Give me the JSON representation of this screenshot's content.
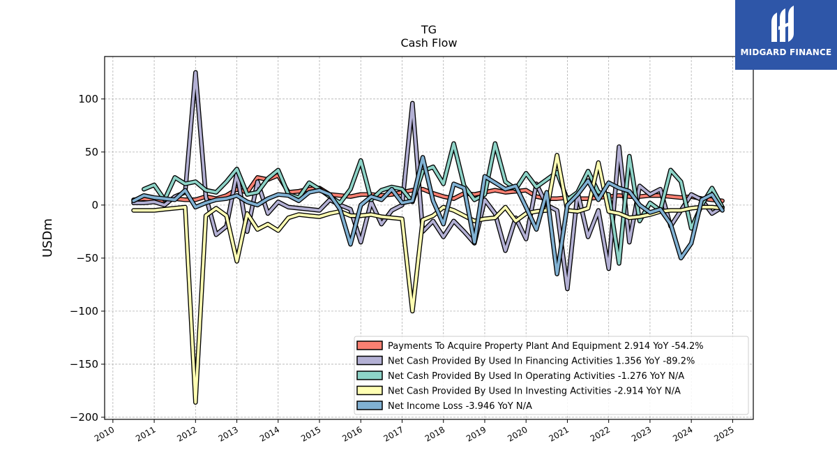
{
  "brand": {
    "name": "MIDGARD FINANCE"
  },
  "chart_data": {
    "type": "line",
    "title": "TG",
    "subtitle": "Cash Flow",
    "xlabel": "",
    "ylabel": "USDm",
    "xlim": [
      2009.8,
      2025.5
    ],
    "ylim": [
      -202,
      140
    ],
    "yticks": [
      100,
      50,
      0,
      -50,
      -100,
      -150,
      -200
    ],
    "ytick_labels": [
      "100",
      "50",
      "0",
      "−50",
      "−100",
      "−150",
      "−200"
    ],
    "xticks": [
      2010,
      2011,
      2012,
      2013,
      2014,
      2015,
      2016,
      2017,
      2018,
      2019,
      2020,
      2021,
      2022,
      2023,
      2024,
      2025
    ],
    "xtick_labels": [
      "2010",
      "2011",
      "2012",
      "2013",
      "2014",
      "2015",
      "2016",
      "2017",
      "2018",
      "2019",
      "2020",
      "2021",
      "2022",
      "2023",
      "2024",
      "2025"
    ],
    "grid": true,
    "legend_position": "bottom-right",
    "series": [
      {
        "name": "Payments To Acquire Property Plant And Equipment  2.914 YoY -54.2%",
        "color": "#fa8072",
        "x": [
          2010.5,
          2010.75,
          2011.0,
          2011.25,
          2011.5,
          2011.75,
          2012.0,
          2012.25,
          2012.5,
          2012.75,
          2013.0,
          2013.25,
          2013.5,
          2013.75,
          2014.0,
          2014.25,
          2014.5,
          2014.75,
          2015.0,
          2015.25,
          2015.5,
          2015.75,
          2016.0,
          2016.25,
          2016.5,
          2016.75,
          2017.0,
          2017.25,
          2017.5,
          2017.75,
          2018.0,
          2018.25,
          2018.5,
          2018.75,
          2019.0,
          2019.25,
          2019.5,
          2019.75,
          2020.0,
          2020.25,
          2020.5,
          2020.75,
          2021.0,
          2021.25,
          2021.5,
          2021.75,
          2022.0,
          2022.25,
          2022.5,
          2022.75,
          2023.0,
          2023.25,
          2023.5,
          2023.75,
          2024.0,
          2024.25,
          2024.5,
          2024.75
        ],
        "values": [
          5,
          6,
          5,
          4,
          6,
          5,
          5,
          8,
          6,
          9,
          15,
          12,
          26,
          24,
          28,
          12,
          13,
          15,
          16,
          10,
          9,
          8,
          10,
          10,
          9,
          10,
          12,
          14,
          15,
          11,
          8,
          6,
          11,
          10,
          12,
          14,
          12,
          13,
          14,
          8,
          6,
          6,
          7,
          6,
          6,
          7,
          8,
          9,
          8,
          8,
          9,
          9,
          8,
          7,
          8,
          6,
          5,
          4
        ]
      },
      {
        "name": "Net Cash Provided By Used In Financing Activities  1.356 YoY -89.2%",
        "color": "#b3b0d4",
        "x": [
          2010.5,
          2010.75,
          2011.0,
          2011.25,
          2011.5,
          2011.75,
          2012.0,
          2012.25,
          2012.5,
          2012.75,
          2013.0,
          2013.25,
          2013.5,
          2013.75,
          2014.0,
          2014.25,
          2014.5,
          2014.75,
          2015.0,
          2015.25,
          2015.5,
          2015.75,
          2016.0,
          2016.25,
          2016.5,
          2016.75,
          2017.0,
          2017.25,
          2017.5,
          2017.75,
          2018.0,
          2018.25,
          2018.5,
          2018.75,
          2019.0,
          2019.25,
          2019.5,
          2019.75,
          2020.0,
          2020.25,
          2020.5,
          2020.75,
          2021.0,
          2021.25,
          2021.5,
          2021.75,
          2022.0,
          2022.25,
          2022.5,
          2022.75,
          2023.0,
          2023.25,
          2023.5,
          2023.75,
          2024.0,
          2024.25,
          2024.5,
          2024.75
        ],
        "values": [
          2,
          2,
          3,
          0,
          8,
          12,
          125,
          8,
          -28,
          -20,
          30,
          -25,
          22,
          -8,
          3,
          -2,
          -3,
          -4,
          -5,
          5,
          0,
          -4,
          -35,
          3,
          -18,
          -5,
          0,
          96,
          -25,
          -15,
          -30,
          -15,
          -25,
          -36,
          5,
          -8,
          -43,
          -12,
          -32,
          20,
          0,
          -5,
          -79,
          12,
          -30,
          -5,
          -60,
          55,
          -35,
          18,
          10,
          15,
          -20,
          -5,
          10,
          5,
          -8,
          -2
        ]
      },
      {
        "name": "Net Cash Provided By Used In Operating Activities  -1.276 YoY N/A",
        "color": "#8dd3c7",
        "x": [
          2010.75,
          2011.0,
          2011.25,
          2011.5,
          2011.75,
          2012.0,
          2012.25,
          2012.5,
          2012.75,
          2013.0,
          2013.25,
          2013.5,
          2013.75,
          2014.0,
          2014.25,
          2014.5,
          2014.75,
          2015.0,
          2015.25,
          2015.5,
          2015.75,
          2016.0,
          2016.25,
          2016.5,
          2016.75,
          2017.0,
          2017.25,
          2017.5,
          2017.75,
          2018.0,
          2018.25,
          2018.5,
          2018.75,
          2019.0,
          2019.25,
          2019.5,
          2019.75,
          2020.0,
          2020.25,
          2020.5,
          2020.75,
          2021.0,
          2021.25,
          2021.5,
          2021.75,
          2022.0,
          2022.25,
          2022.5,
          2022.75,
          2023.0,
          2023.25,
          2023.5,
          2023.75,
          2024.0,
          2024.25,
          2024.5,
          2024.75
        ],
        "values": [
          15,
          19,
          5,
          26,
          20,
          22,
          14,
          12,
          22,
          34,
          10,
          12,
          25,
          33,
          10,
          7,
          21,
          15,
          8,
          2,
          15,
          42,
          5,
          14,
          17,
          15,
          3,
          32,
          36,
          20,
          58,
          18,
          5,
          10,
          58,
          22,
          15,
          30,
          17,
          24,
          31,
          5,
          12,
          32,
          12,
          10,
          -55,
          46,
          -15,
          2,
          -5,
          33,
          22,
          -22,
          0,
          16,
          -2
        ]
      },
      {
        "name": "Net Cash Provided By Used In Investing Activities  -2.914 YoY N/A",
        "color": "#ffffb3",
        "x": [
          2010.5,
          2010.75,
          2011.0,
          2011.25,
          2011.5,
          2011.75,
          2012.0,
          2012.25,
          2012.5,
          2012.75,
          2013.0,
          2013.25,
          2013.5,
          2013.75,
          2014.0,
          2014.25,
          2014.5,
          2014.75,
          2015.0,
          2015.25,
          2015.5,
          2015.75,
          2016.0,
          2016.25,
          2016.5,
          2016.75,
          2017.0,
          2017.25,
          2017.5,
          2017.75,
          2018.0,
          2018.25,
          2018.5,
          2018.75,
          2019.0,
          2019.25,
          2019.5,
          2019.75,
          2020.0,
          2020.25,
          2020.5,
          2020.75,
          2021.0,
          2021.25,
          2021.5,
          2021.75,
          2022.0,
          2022.25,
          2022.5,
          2022.75,
          2023.0,
          2023.25,
          2023.5,
          2023.75,
          2024.0,
          2024.25,
          2024.5,
          2024.75
        ],
        "values": [
          -5,
          -5,
          -5,
          -4,
          -3,
          -2,
          -186,
          -10,
          -3,
          -10,
          -53,
          -8,
          -23,
          -18,
          -24,
          -12,
          -9,
          -10,
          -11,
          -8,
          -6,
          -10,
          -10,
          -9,
          -11,
          -12,
          -13,
          -100,
          -14,
          -10,
          -2,
          -5,
          -10,
          -15,
          -13,
          -12,
          -2,
          -15,
          -8,
          -6,
          -5,
          47,
          -5,
          -6,
          -3,
          40,
          -6,
          -8,
          -12,
          -11,
          -9,
          -6,
          -5,
          -5,
          -3,
          -2,
          -2,
          -3
        ]
      },
      {
        "name": "Net Income Loss  -3.946 YoY N/A",
        "color": "#80b1d3",
        "x": [
          2010.5,
          2010.75,
          2011.0,
          2011.25,
          2011.5,
          2011.75,
          2012.0,
          2012.25,
          2012.5,
          2012.75,
          2013.0,
          2013.25,
          2013.5,
          2013.75,
          2014.0,
          2014.25,
          2014.5,
          2014.75,
          2015.0,
          2015.25,
          2015.5,
          2015.75,
          2016.0,
          2016.25,
          2016.5,
          2016.75,
          2017.0,
          2017.25,
          2017.5,
          2017.75,
          2018.0,
          2018.25,
          2018.5,
          2018.75,
          2019.0,
          2019.25,
          2019.5,
          2019.75,
          2020.0,
          2020.25,
          2020.5,
          2020.75,
          2021.0,
          2021.25,
          2021.5,
          2021.75,
          2022.0,
          2022.25,
          2022.5,
          2022.75,
          2023.0,
          2023.25,
          2023.5,
          2023.75,
          2024.0,
          2024.25,
          2024.5,
          2024.75
        ],
        "values": [
          4,
          9,
          7,
          6,
          5,
          14,
          -2,
          2,
          5,
          6,
          9,
          3,
          0,
          6,
          10,
          9,
          4,
          12,
          14,
          10,
          -4,
          -37,
          0,
          8,
          5,
          15,
          2,
          4,
          45,
          4,
          -18,
          20,
          16,
          -35,
          27,
          21,
          15,
          18,
          -2,
          -23,
          12,
          -65,
          0,
          10,
          23,
          5,
          21,
          16,
          13,
          0,
          -7,
          -4,
          -18,
          -50,
          -36,
          5,
          10,
          -5
        ]
      }
    ]
  }
}
